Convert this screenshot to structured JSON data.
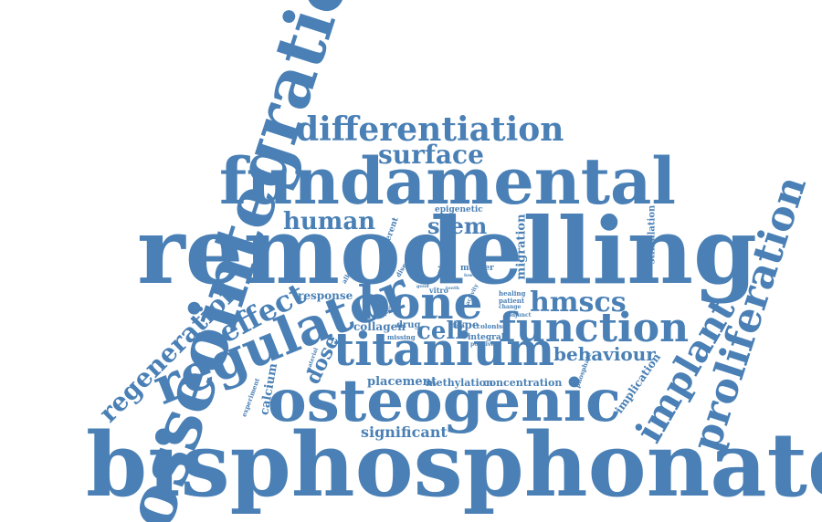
{
  "style": {
    "color": "#4a80b5"
  },
  "words": {
    "bisphosphonates": "bisphosphonates",
    "remodelling": "remodelling",
    "osseointegration": "osseointegration",
    "fundamental": "fundamental",
    "osteogenic": "osteogenic",
    "regulator": "regulator",
    "titanium": "titanium",
    "bone": "bone",
    "function": "function",
    "proliferation": "proliferation",
    "implant": "implant",
    "differentiation": "differentiation",
    "surface": "surface",
    "human": "human",
    "stem": "stem",
    "hmscs": "hmscs",
    "cell": "cell",
    "regeneration": "regeneration",
    "effect": "effect",
    "behaviour": "behaviour",
    "dose": "dose",
    "significant": "significant",
    "response": "response",
    "placement": "placement",
    "methylation": "methylation",
    "concentration": "concentration",
    "collagen": "collagen",
    "calcium": "calcium",
    "migration": "migration",
    "implication": "implication",
    "stimulation": "stimulation",
    "different": "different",
    "epigenetic": "epigenetic",
    "marker": "marker",
    "type": "type",
    "drug": "drug",
    "integral": "integral",
    "missing": "missing",
    "colonise": "colonise",
    "patient": "patient",
    "healing": "healing",
    "enhance": "enhance",
    "alkaline": "alkaline",
    "disease": "disease",
    "experiment": "experiment",
    "phosphate": "phosphate",
    "adjunct": "adjunct",
    "positive": "positive",
    "change": "change",
    "vitro": "vitro",
    "data": "data",
    "material": "material",
    "activity": "activity",
    "good": "good",
    "tooth": "tooth",
    "lower": "lower",
    "use": "use",
    "range": "range",
    "induce": "induce"
  }
}
